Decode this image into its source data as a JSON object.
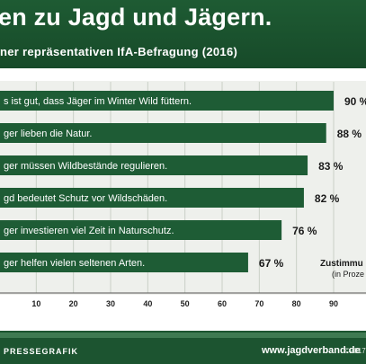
{
  "header": {
    "title": "en zu Jagd und Jägern.",
    "subtitle": "ner repräsentativen IfA-Befragung (2016)"
  },
  "chart_data": {
    "type": "bar",
    "orientation": "horizontal",
    "categories": [
      "s ist gut, dass Jäger im Winter Wild füttern.",
      "ger lieben die Natur.",
      "ger müssen Wildbestände regulieren.",
      "gd bedeutet Schutz vor Wildschäden.",
      "ger investieren viel Zeit in Naturschutz.",
      "ger helfen vielen seltenen Arten."
    ],
    "values": [
      90,
      88,
      83,
      82,
      76,
      67
    ],
    "value_labels": [
      "90 %",
      "88 %",
      "83 %",
      "82 %",
      "76 %",
      "67 %"
    ],
    "xlim": [
      0,
      100
    ],
    "xticks": [
      "10",
      "20",
      "30",
      "40",
      "50",
      "60",
      "70",
      "80",
      "90"
    ],
    "legend_note": [
      "Zustimmu",
      "(in Proze"
    ],
    "bar_color": "#1e5c35"
  },
  "footer": {
    "left": "PRESSEGRAFIK",
    "url": "www.jagdverband.de",
    "copyright": "©2017"
  }
}
